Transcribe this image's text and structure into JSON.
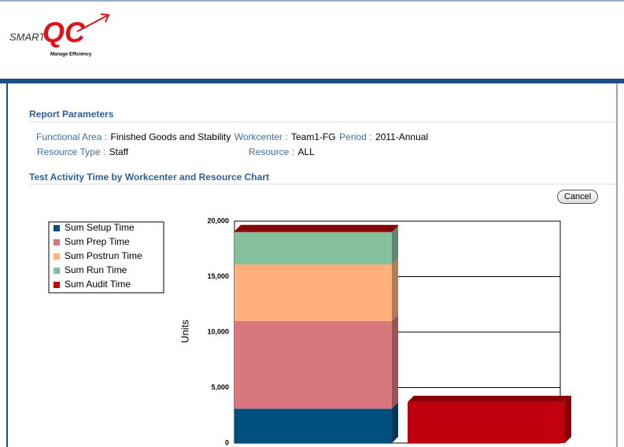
{
  "header": {
    "logo_prefix": "SMART",
    "logo_mark": "QC",
    "tagline": "Manage Efficiency"
  },
  "report_parameters": {
    "title": "Report Parameters",
    "row1": [
      {
        "label": "Functional Area :",
        "value": "Finished Goods and Stability"
      },
      {
        "label": "Workcenter :",
        "value": "Team1-FG"
      },
      {
        "label": "Period :",
        "value": "2011-Annual"
      }
    ],
    "row2": [
      {
        "label": "Resource Type :",
        "value": "Staff"
      },
      {
        "label": "Resource :",
        "value": "ALL"
      }
    ]
  },
  "section_title": "Test Activity Time by Workcenter and Resource Chart",
  "cancel_button": "Cancel",
  "chart_data": {
    "type": "stacked_bar",
    "ylabel": "Units",
    "categories": [
      null,
      null
    ],
    "series": [
      {
        "name": "Sum Setup Time",
        "color": "#00507f",
        "values": [
          3100,
          0
        ]
      },
      {
        "name": "Sum Prep Time",
        "color": "#d9787c",
        "values": [
          7900,
          0
        ]
      },
      {
        "name": "Sum Postrun Time",
        "color": "#ffb07c",
        "values": [
          5100,
          0
        ]
      },
      {
        "name": "Sum Run Time",
        "color": "#84c09c",
        "values": [
          2900,
          0
        ]
      },
      {
        "name": "Sum Audit Time",
        "color": "#c0000e",
        "values": [
          100,
          3700
        ]
      }
    ],
    "ylim": [
      0,
      20000
    ],
    "yticks": [
      0,
      {
        "value": 5000,
        "label": "5,000"
      },
      {
        "value": 10000,
        "label": "10,000"
      },
      {
        "value": 15000,
        "label": "15,000"
      },
      {
        "value": 20000,
        "label": "20,000"
      }
    ],
    "grid": true,
    "legend": "left"
  }
}
